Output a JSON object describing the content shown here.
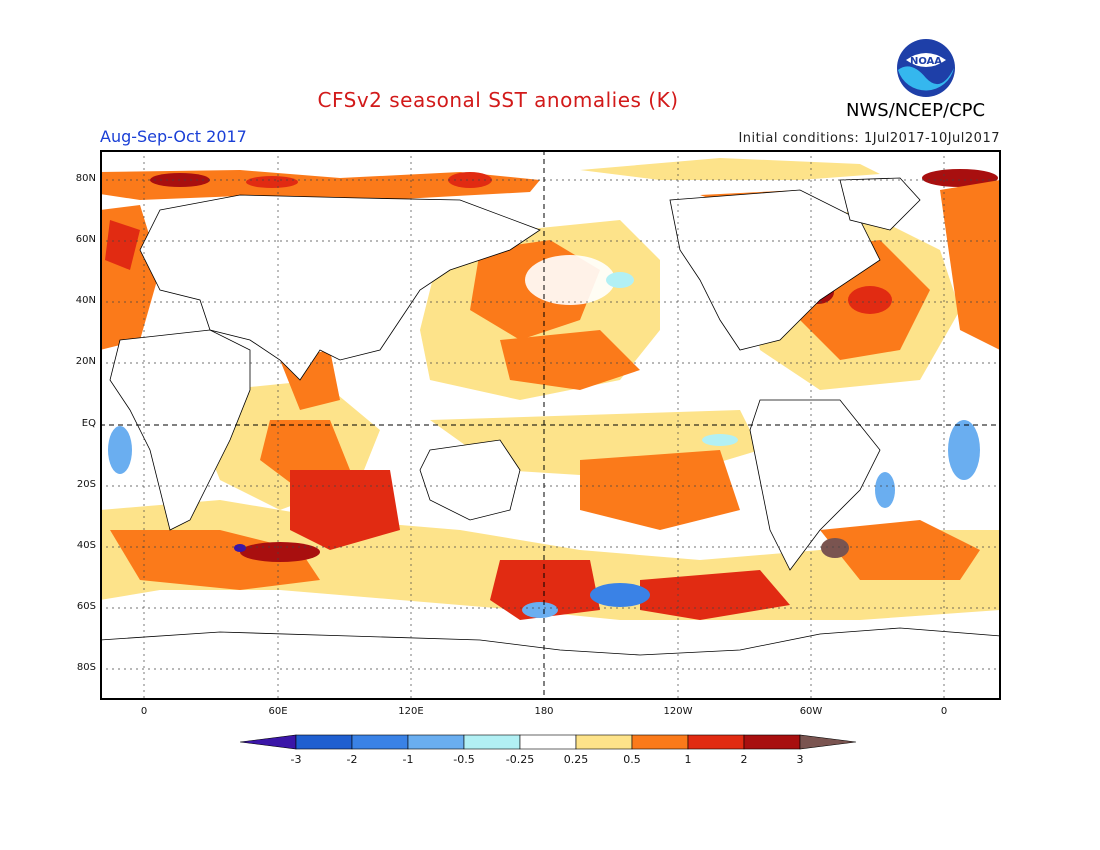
{
  "title": "CFSv2 seasonal SST anomalies (K)",
  "organization": "NWS/NCEP/CPC",
  "logo_text": "NOAA",
  "season": "Aug-Sep-Oct 2017",
  "initial_conditions": "Initial conditions: 1Jul2017-10Jul2017",
  "lat_labels": [
    "80N",
    "60N",
    "40N",
    "20N",
    "EQ",
    "20S",
    "40S",
    "60S",
    "80S"
  ],
  "lon_labels": [
    "0",
    "60E",
    "120E",
    "180",
    "120W",
    "60W",
    "0"
  ],
  "colorbar": {
    "labels": [
      "-3",
      "-2",
      "-1",
      "-0.5",
      "-0.25",
      "0.25",
      "0.5",
      "1",
      "2",
      "3"
    ],
    "colors": [
      "#3b16a8",
      "#1f5fd0",
      "#3a82e6",
      "#6aaef0",
      "#b2f0f4",
      "#ffffff",
      "#fde38a",
      "#fb7a1a",
      "#e12b12",
      "#a80f0f",
      "#7a5450"
    ]
  }
}
